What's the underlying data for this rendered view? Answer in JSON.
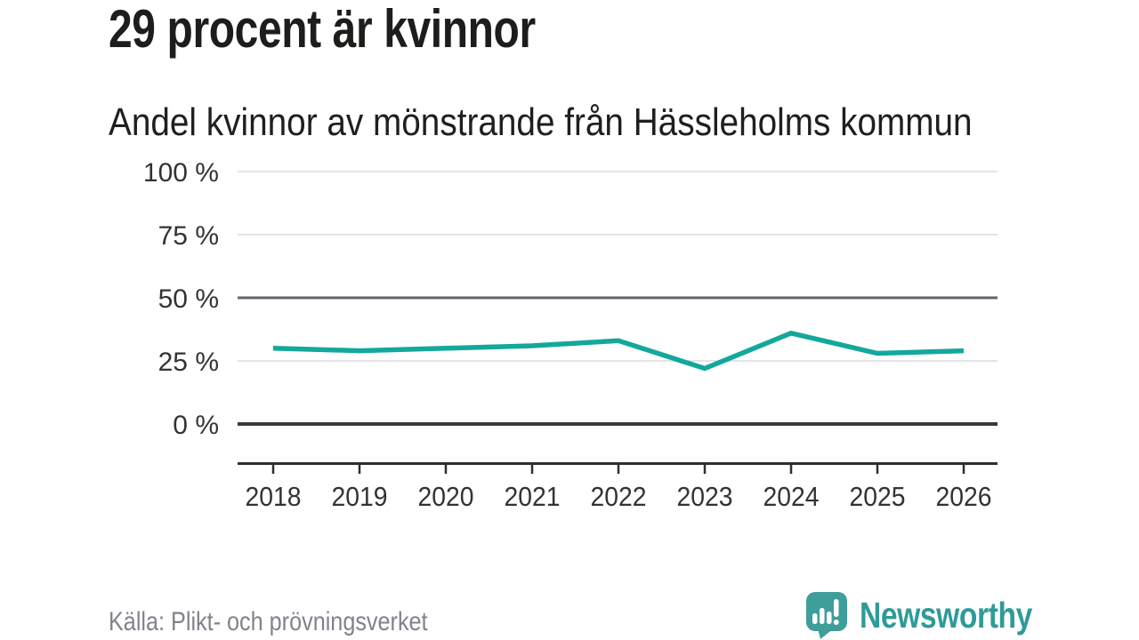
{
  "chart_data": {
    "type": "line",
    "title": "29 procent är kvinnor",
    "subtitle": "Andel kvinnor av mönstrande från Hässleholms kommun",
    "categories": [
      "2018",
      "2019",
      "2020",
      "2021",
      "2022",
      "2023",
      "2024",
      "2025",
      "2026"
    ],
    "series": [
      {
        "name": "Andel kvinnor av mönstrande",
        "values": [
          30,
          29,
          30,
          31,
          33,
          22,
          36,
          28,
          29
        ]
      }
    ],
    "unit": "%",
    "xlabel": "",
    "ylabel": "",
    "ylim": [
      0,
      100
    ],
    "yticks": [
      {
        "value": 100,
        "label": "100 %"
      },
      {
        "value": 75,
        "label": "75 %"
      },
      {
        "value": 50,
        "label": "50 %"
      },
      {
        "value": 25,
        "label": "25 %"
      },
      {
        "value": 0,
        "label": "0 %"
      }
    ],
    "grid": "horizontal",
    "legend": "none",
    "line_color": "#13a89c"
  },
  "footer": {
    "source": "Källa: Plikt- och prövningsverket",
    "brand_name": "Newsworthy",
    "brand_icon": "speech-bubble-chart-icon"
  },
  "colors": {
    "background": "#ffffff",
    "title_text": "#1d1d1b",
    "axis_text": "#333333",
    "grid_light": "#e4e4e6",
    "grid_mid": "#65626d",
    "grid_zero": "#3a3a3c",
    "axis_line": "#2e2e2e",
    "line": "#13a89c",
    "source_text": "#82828c",
    "brand_teal": "#2f9b98",
    "icon_teal": "#3f9e9a"
  }
}
